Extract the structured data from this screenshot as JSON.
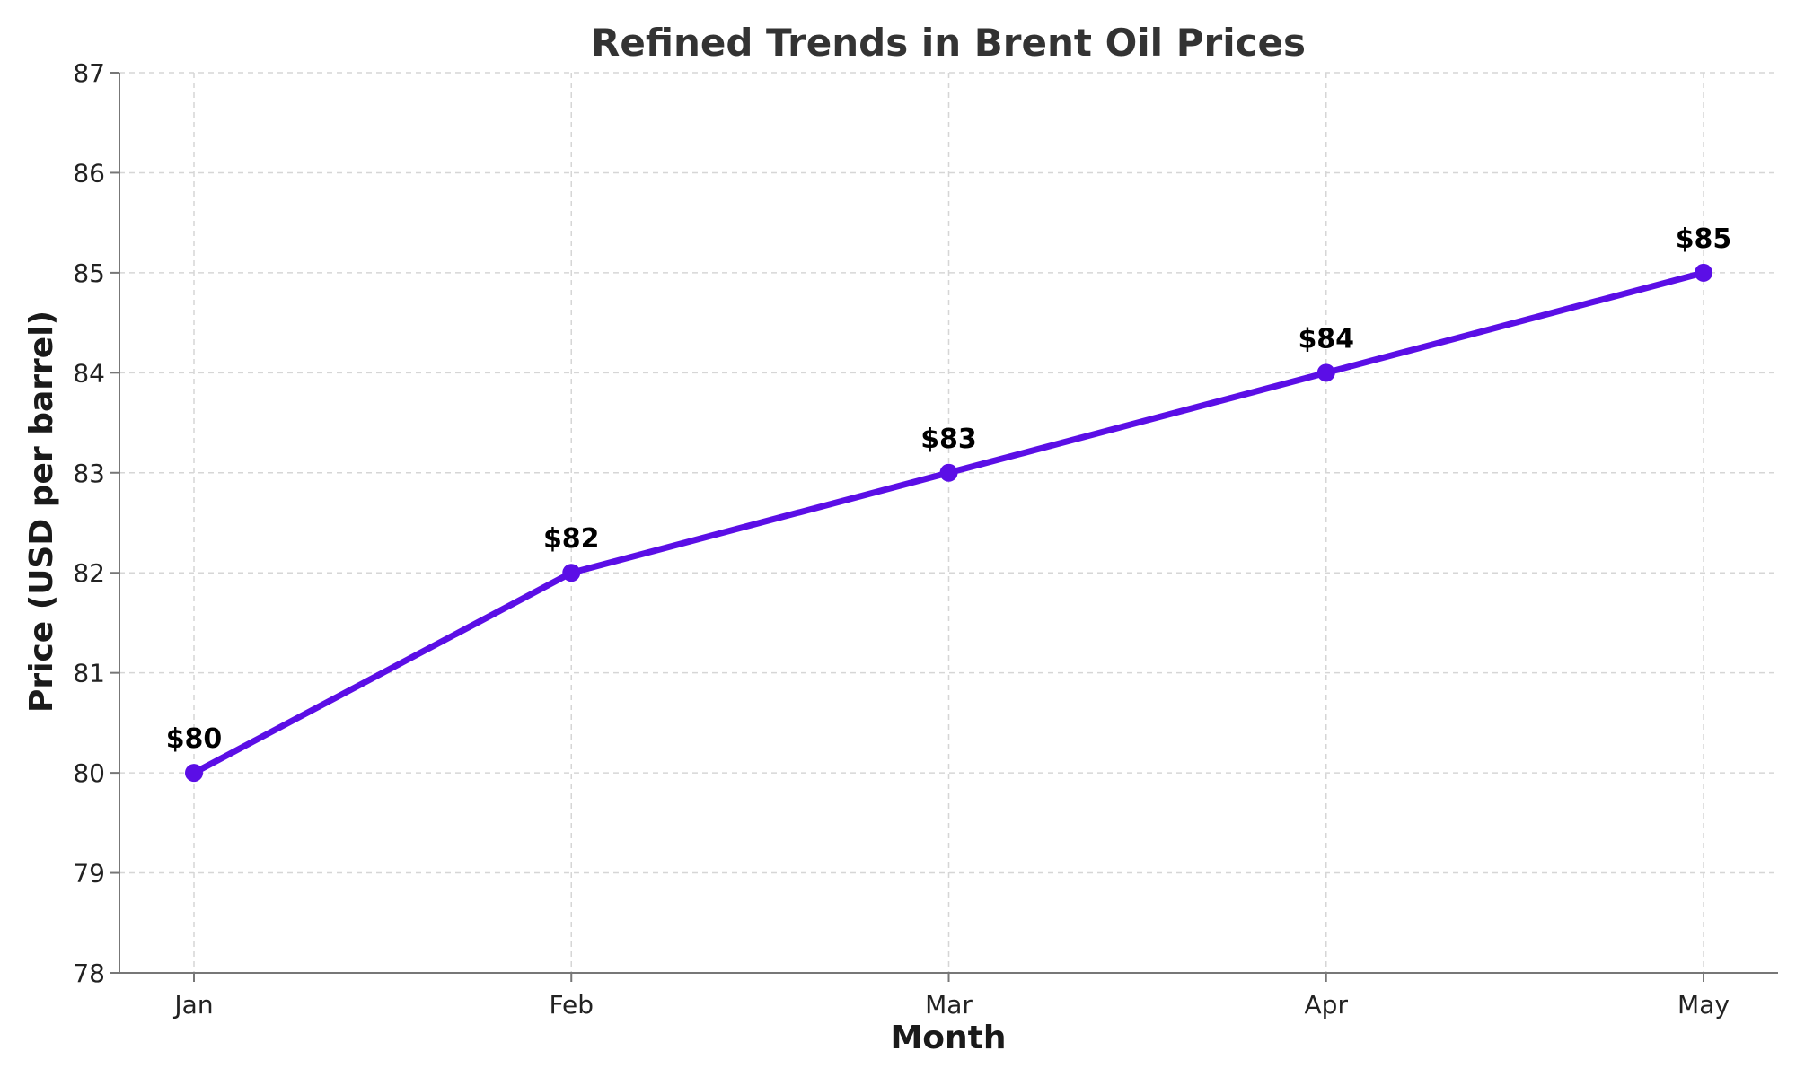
{
  "chart_data": {
    "type": "line",
    "title": "Refined Trends in Brent Oil Prices",
    "xlabel": "Month",
    "ylabel": "Price (USD per barrel)",
    "categories": [
      "Jan",
      "Feb",
      "Mar",
      "Apr",
      "May"
    ],
    "series": [
      {
        "values": [
          80,
          82,
          83,
          84,
          85
        ],
        "data_labels": [
          "$80",
          "$82",
          "$83",
          "$84",
          "$85"
        ],
        "color": "#5b0ee6"
      }
    ],
    "ylim": [
      78,
      87
    ],
    "yticks": [
      "78",
      "79",
      "80",
      "81",
      "82",
      "83",
      "84",
      "85",
      "86",
      "87"
    ],
    "grid": true,
    "legend": false
  }
}
